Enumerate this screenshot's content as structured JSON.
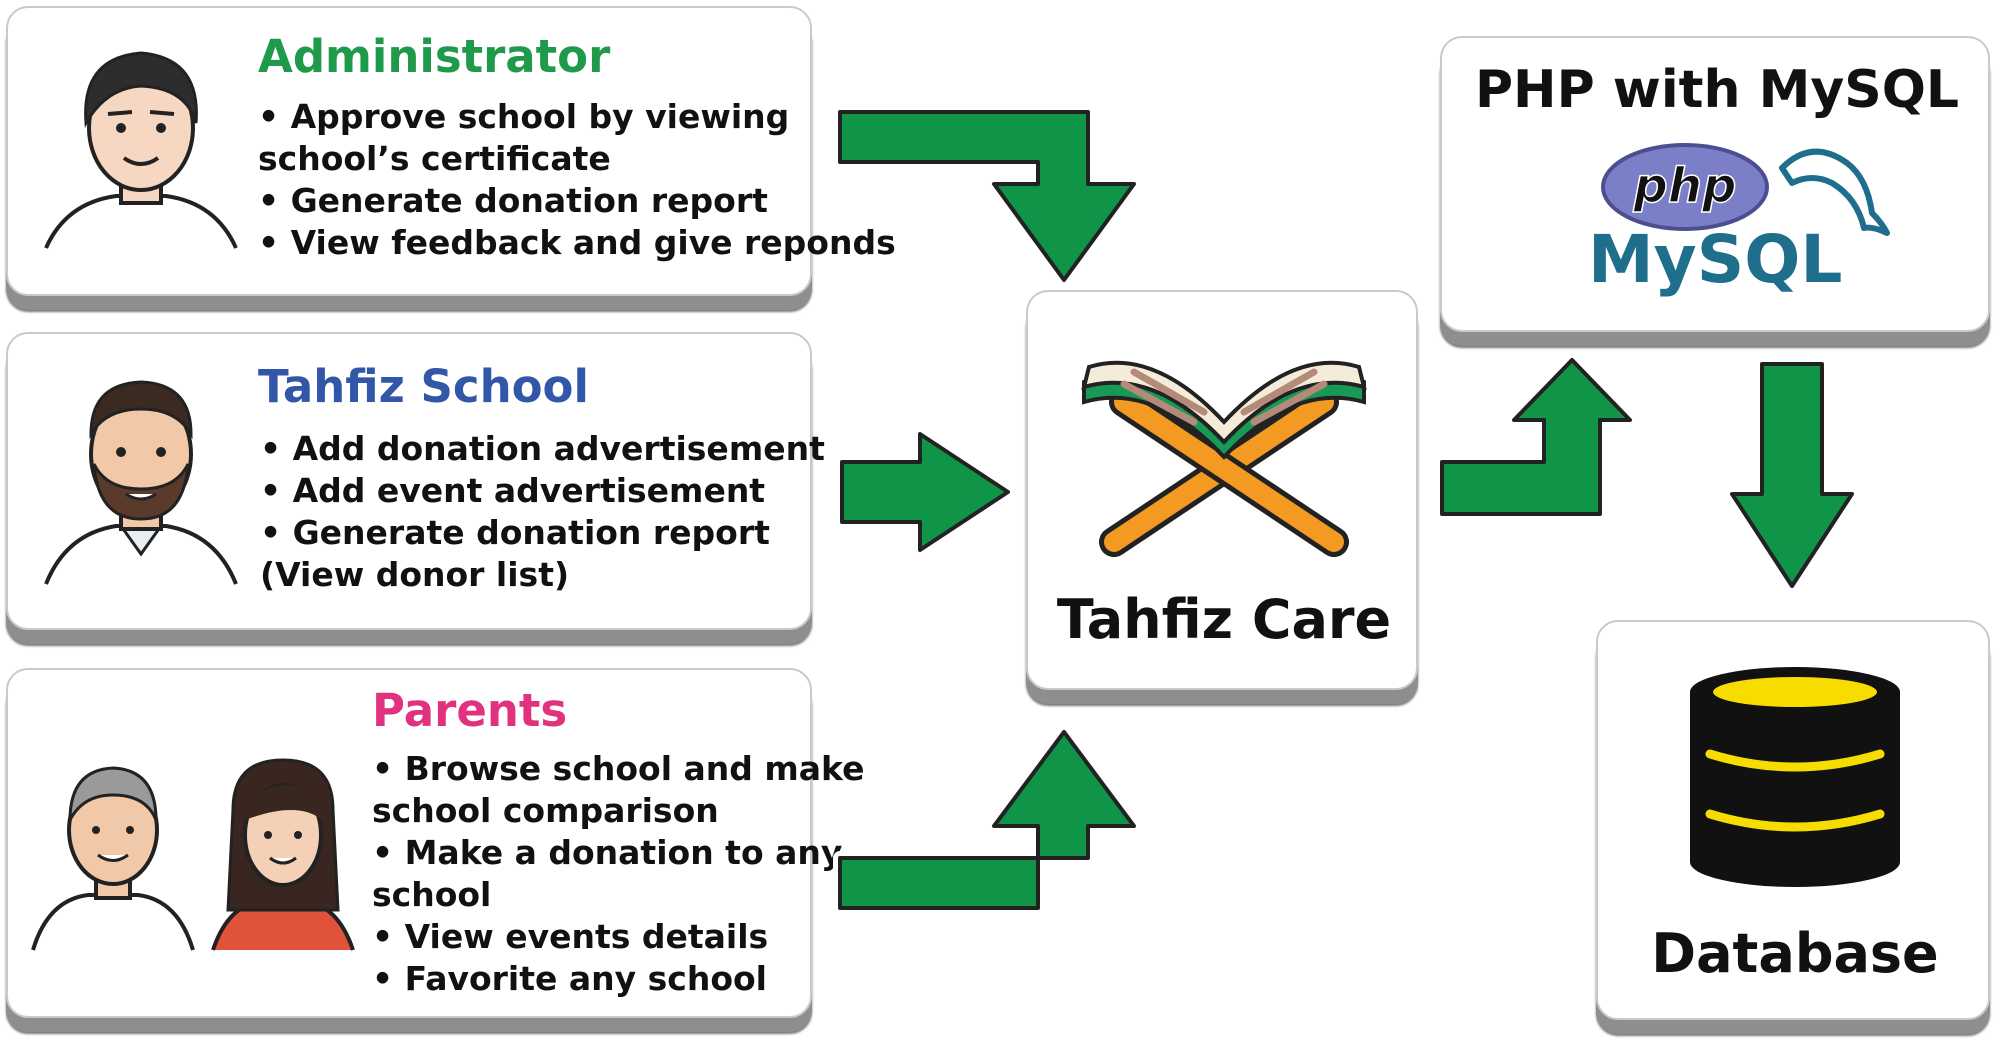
{
  "administrator": {
    "title": "Administrator",
    "title_color": "#1f9a4a",
    "lines": [
      "• Approve school by viewing",
      "school’s certificate",
      "• Generate donation report",
      "• View feedback and give reponds"
    ]
  },
  "tahfiz_school": {
    "title": "Tahfiz School",
    "title_color": "#3256a8",
    "lines": [
      "• Add donation advertisement",
      "• Add event advertisement",
      "• Generate donation report",
      "(View donor list)"
    ]
  },
  "parents": {
    "title": "Parents",
    "title_color": "#e0327e",
    "lines": [
      "• Browse school and make",
      "school comparison",
      "• Make a donation to any",
      "school",
      "• View events details",
      "• Favorite any school"
    ]
  },
  "center": {
    "label": "Tahfiz Care"
  },
  "tech": {
    "title": "PHP with MySQL",
    "php_logo_text": "php",
    "mysql_logo_text": "MySQL"
  },
  "database": {
    "label": "Database"
  },
  "colors": {
    "arrow_green": "#0f9448",
    "card_shadow": "#8e8e8e",
    "db_black": "#111111",
    "db_yellow": "#f7dc00",
    "php_purple": "#7b7fc7",
    "mysql_blue": "#1f6e8c",
    "mysql_orange": "#e48e00",
    "book_orange": "#f39a22",
    "book_green": "#179a55"
  },
  "icons": [
    "administrator-avatar",
    "tahfiz-school-avatar",
    "parents-avatar",
    "quran-book-icon",
    "php-logo",
    "mysql-dolphin-logo",
    "database-icon"
  ]
}
